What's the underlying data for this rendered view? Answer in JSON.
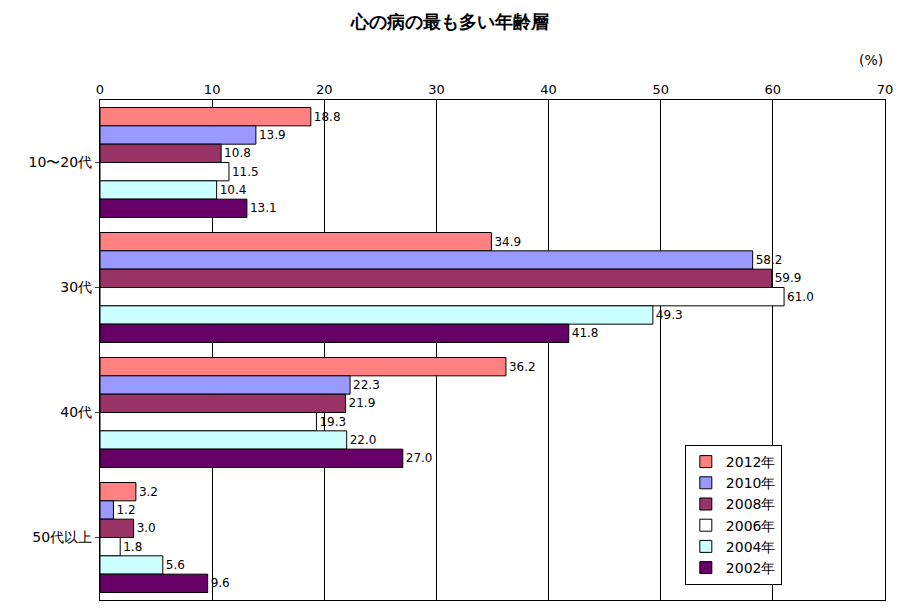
{
  "chart_data": {
    "type": "bar",
    "orientation": "horizontal",
    "title": "心の病の最も多い年齢層",
    "xlabel": "(%)",
    "categories": [
      "10〜20代",
      "30代",
      "40代",
      "50代以上"
    ],
    "series": [
      {
        "name": "2012年",
        "color": "#ff8080",
        "values": [
          18.8,
          34.9,
          36.2,
          3.2
        ],
        "value_labels": [
          "18.8",
          "34.9",
          "36.2",
          "3.2"
        ]
      },
      {
        "name": "2010年",
        "color": "#9999ff",
        "values": [
          13.9,
          58.2,
          22.3,
          1.2
        ],
        "value_labels": [
          "13.9",
          "58.2",
          "22.3",
          "1.2"
        ]
      },
      {
        "name": "2008年",
        "color": "#993366",
        "values": [
          10.8,
          59.9,
          21.9,
          3.0
        ],
        "value_labels": [
          "10.8",
          "59.9",
          "21.9",
          "3.0"
        ]
      },
      {
        "name": "2006年",
        "color": "#ffffff",
        "values": [
          11.5,
          61.0,
          19.3,
          1.8
        ],
        "value_labels": [
          "11.5",
          "61.0",
          "19.3",
          "1.8"
        ]
      },
      {
        "name": "2004年",
        "color": "#ccffff",
        "values": [
          10.4,
          49.3,
          22.0,
          5.6
        ],
        "value_labels": [
          "10.4",
          "49.3",
          "22.0",
          "5.6"
        ]
      },
      {
        "name": "2002年",
        "color": "#660066",
        "values": [
          13.1,
          41.8,
          27.0,
          9.6
        ],
        "value_labels": [
          "13.1",
          "41.8",
          "27.0",
          "9.6"
        ]
      }
    ],
    "xlim": [
      0,
      70
    ],
    "xticks": [
      0,
      10,
      20,
      30,
      40,
      50,
      60,
      70
    ],
    "grid": true,
    "legend": "bottom right",
    "data_labels": true
  }
}
